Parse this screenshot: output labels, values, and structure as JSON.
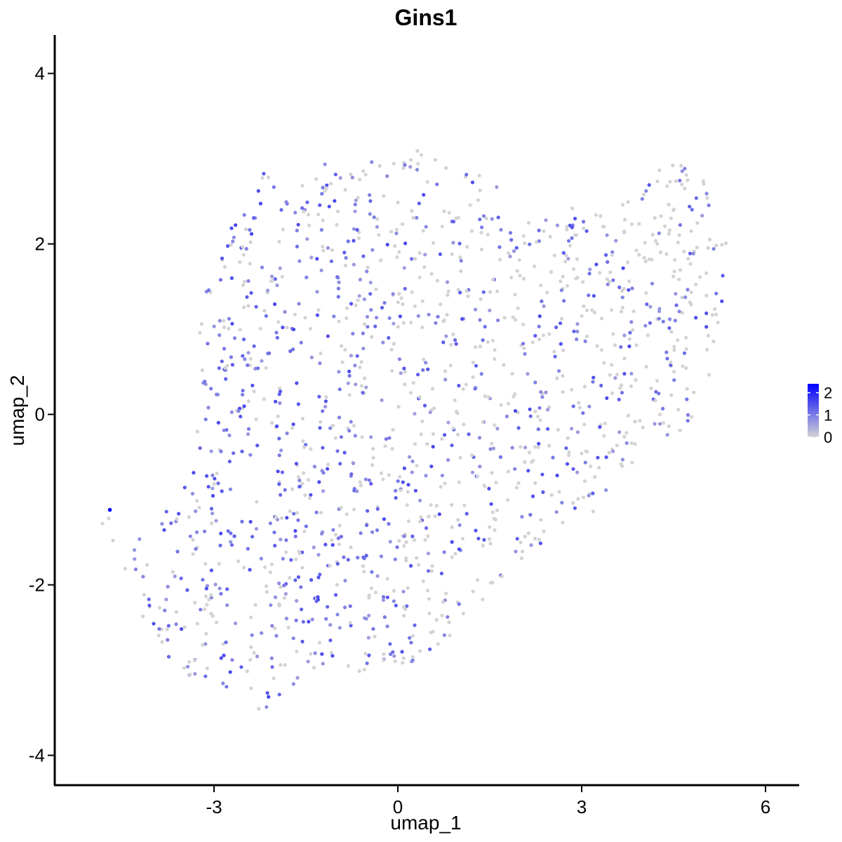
{
  "chart_data": {
    "type": "scatter",
    "title": "Gins1",
    "xlabel": "umap_1",
    "ylabel": "umap_2",
    "xlim": [
      -5.6,
      6.55
    ],
    "ylim": [
      -4.35,
      4.45
    ],
    "x_ticks": [
      -3,
      0,
      3,
      6
    ],
    "y_ticks": [
      -4,
      -2,
      0,
      2,
      4
    ],
    "grid": false,
    "legend": {
      "placement": "right",
      "ticks": [
        0,
        1,
        2
      ],
      "range": [
        0,
        2.4
      ],
      "low_color": "#d3d3d3",
      "high_color": "#0000ff"
    },
    "highlight_point": {
      "x": -4.7,
      "y": -1.12,
      "value": 2.4
    },
    "outlier_points": [
      {
        "x": -4.82,
        "y": -1.28,
        "value": 0
      },
      {
        "x": -4.72,
        "y": -1.22,
        "value": 0
      },
      {
        "x": -4.65,
        "y": -1.48,
        "value": 0
      },
      {
        "x": -4.45,
        "y": -1.81,
        "value": 0
      }
    ],
    "point_cloud": {
      "description_free": true,
      "count": 1500,
      "region_polygon": [
        [
          -4.3,
          -1.4
        ],
        [
          -3.9,
          -1.2
        ],
        [
          -3.3,
          -0.4
        ],
        [
          -3.2,
          0.3
        ],
        [
          -3.25,
          1.3
        ],
        [
          -3.0,
          2.2
        ],
        [
          -2.1,
          2.9
        ],
        [
          -1.2,
          3.0
        ],
        [
          -0.3,
          3.05
        ],
        [
          0.2,
          3.15
        ],
        [
          0.9,
          2.95
        ],
        [
          1.6,
          2.9
        ],
        [
          1.7,
          2.2
        ],
        [
          2.4,
          2.4
        ],
        [
          3.3,
          2.45
        ],
        [
          4.0,
          2.6
        ],
        [
          4.45,
          3.05
        ],
        [
          5.0,
          2.8
        ],
        [
          5.4,
          2.4
        ],
        [
          5.35,
          1.6
        ],
        [
          5.15,
          0.6
        ],
        [
          4.8,
          -0.1
        ],
        [
          3.9,
          -0.55
        ],
        [
          3.3,
          -1.1
        ],
        [
          2.6,
          -1.4
        ],
        [
          1.8,
          -1.9
        ],
        [
          1.1,
          -2.4
        ],
        [
          0.6,
          -2.8
        ],
        [
          -0.1,
          -3.05
        ],
        [
          -1.0,
          -3.0
        ],
        [
          -1.6,
          -3.1
        ],
        [
          -2.2,
          -3.5
        ],
        [
          -2.9,
          -3.2
        ],
        [
          -3.6,
          -3.0
        ],
        [
          -4.0,
          -2.7
        ],
        [
          -4.3,
          -2.2
        ]
      ]
    }
  }
}
